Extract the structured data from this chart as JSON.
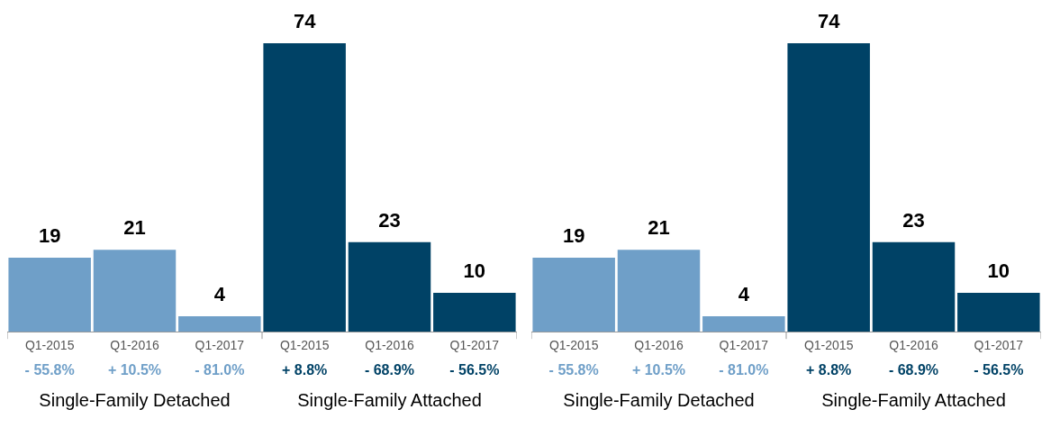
{
  "chart_data": [
    {
      "type": "bar",
      "categories": [
        "Q1-2015",
        "Q1-2016",
        "Q1-2017",
        "Q1-2015",
        "Q1-2016",
        "Q1-2017"
      ],
      "values": [
        19,
        21,
        4,
        74,
        23,
        10
      ],
      "colors": [
        "#6f9fc8",
        "#6f9fc8",
        "#6f9fc8",
        "#004266",
        "#004266",
        "#004266"
      ],
      "data_labels": true,
      "grid": false,
      "legend": false,
      "annotations": [
        "- 55.8%",
        "+ 10.5%",
        "- 81.0%",
        "+ 8.8%",
        "- 68.9%",
        "- 56.5%",
        "Single-Family Detached",
        "Single-Family Attached"
      ]
    },
    {
      "type": "bar",
      "categories": [
        "Q1-2015",
        "Q1-2016",
        "Q1-2017",
        "Q1-2015",
        "Q1-2016",
        "Q1-2017"
      ],
      "values": [
        19,
        21,
        4,
        74,
        23,
        10
      ],
      "colors": [
        "#6f9fc8",
        "#6f9fc8",
        "#6f9fc8",
        "#004266",
        "#004266",
        "#004266"
      ],
      "data_labels": true,
      "grid": false,
      "legend": false,
      "annotations": [
        "- 55.8%",
        "+ 10.5%",
        "- 81.0%",
        "+ 8.8%",
        "- 68.9%",
        "- 56.5%",
        "Single-Family Detached",
        "Single-Family Attached"
      ]
    }
  ]
}
